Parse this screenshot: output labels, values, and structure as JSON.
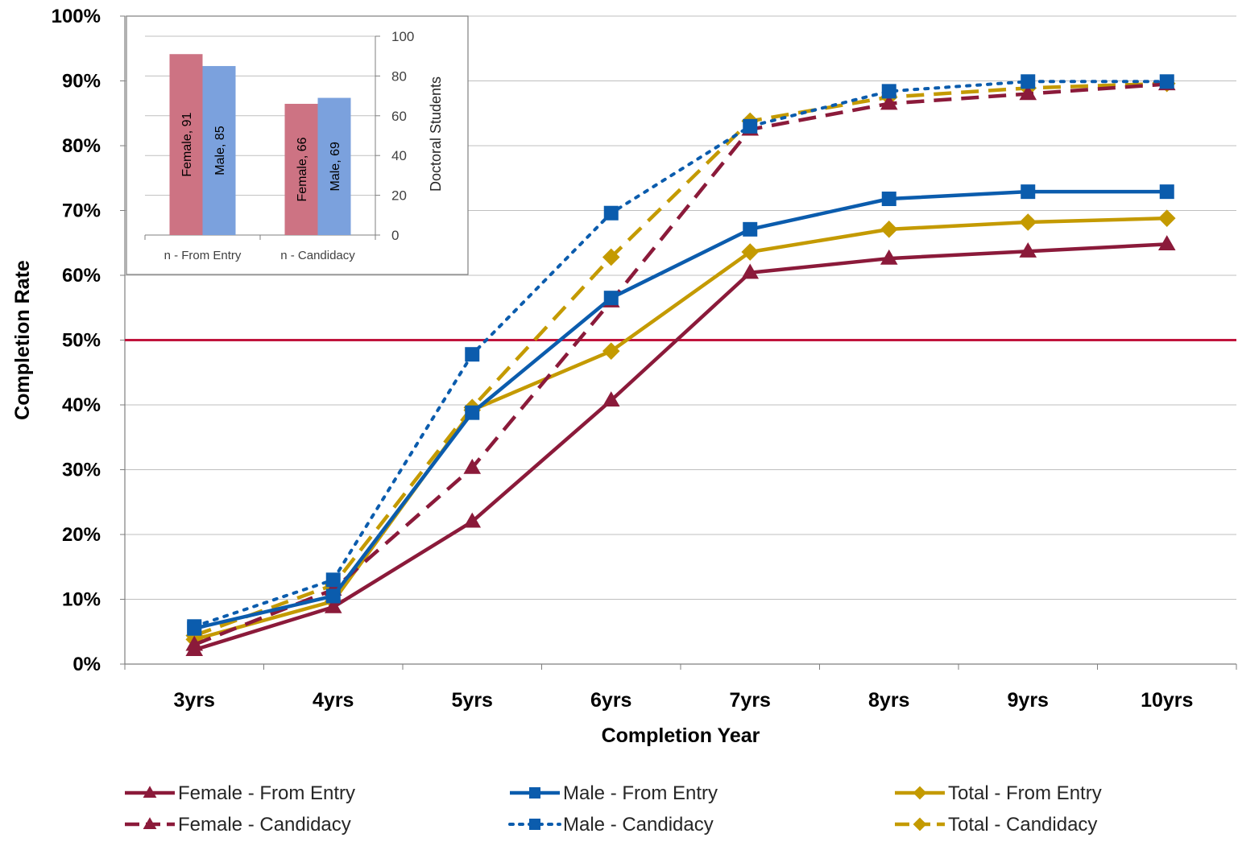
{
  "chart_data": [
    {
      "type": "line",
      "xlabel": "Completion Year",
      "ylabel": "Completion Rate",
      "categories": [
        "3yrs",
        "4yrs",
        "5yrs",
        "6yrs",
        "7yrs",
        "8yrs",
        "9yrs",
        "10yrs"
      ],
      "ylim": [
        0,
        100
      ],
      "y_ticks": [
        "0%",
        "10%",
        "20%",
        "30%",
        "40%",
        "50%",
        "60%",
        "70%",
        "80%",
        "90%",
        "100%"
      ],
      "grid": true,
      "reference_line": {
        "value": 50,
        "color": "#C0143C"
      },
      "legend_position": "bottom",
      "series": [
        {
          "name": "Female - From Entry",
          "values": [
            2.2,
            8.8,
            22,
            40.7,
            60.4,
            62.6,
            63.7,
            64.8
          ],
          "color": "#8B1A3A",
          "style": "solid",
          "marker": "triangle"
        },
        {
          "name": "Female - Candidacy",
          "values": [
            3,
            11.5,
            30.3,
            56,
            82.5,
            86.5,
            88,
            89.5
          ],
          "color": "#8B1A3A",
          "style": "dashed",
          "marker": "triangle"
        },
        {
          "name": "Male - From Entry",
          "values": [
            5.5,
            10.5,
            38.8,
            56.5,
            67.1,
            71.8,
            72.9,
            72.9
          ],
          "color": "#0B5CAD",
          "style": "solid",
          "marker": "square"
        },
        {
          "name": "Male - Candidacy",
          "values": [
            5.8,
            13,
            47.8,
            69.6,
            83,
            88.4,
            89.9,
            89.9
          ],
          "color": "#0B5CAD",
          "style": "dotted",
          "marker": "square"
        },
        {
          "name": "Total - From Entry",
          "values": [
            3.8,
            9.7,
            39.2,
            48.3,
            63.6,
            67.1,
            68.2,
            68.8
          ],
          "color": "#C49A00",
          "style": "solid",
          "marker": "diamond"
        },
        {
          "name": "Total - Candidacy",
          "values": [
            4.4,
            12.2,
            39.6,
            62.8,
            83.8,
            87.5,
            88.9,
            89.6
          ],
          "color": "#C49A00",
          "style": "dashed",
          "marker": "diamond"
        }
      ]
    },
    {
      "type": "bar",
      "ylabel": "Doctoral Students",
      "categories": [
        "n - From Entry",
        "n - Candidacy"
      ],
      "ylim": [
        0,
        100
      ],
      "y_ticks": [
        "0",
        "20",
        "40",
        "60",
        "80",
        "100"
      ],
      "series": [
        {
          "name": "Female",
          "values": [
            91,
            66
          ],
          "labels": [
            "Female, 91",
            "Female, 66"
          ],
          "color": "#CD7383"
        },
        {
          "name": "Male",
          "values": [
            85,
            69
          ],
          "labels": [
            "Male, 85",
            "Male, 69"
          ],
          "color": "#7BA1DD"
        }
      ]
    }
  ]
}
